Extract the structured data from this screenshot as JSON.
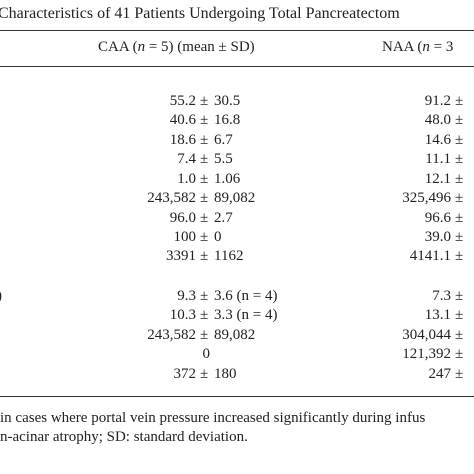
{
  "title": "Characteristics of 41 Patients Undergoing Total Pancreatectom",
  "header": {
    "caa": [
      "CAA (",
      "n",
      " = 5) (mean ± SD)"
    ],
    "naa": [
      "NAA (",
      "n",
      " = 3"
    ]
  },
  "row_label_fragment": ")",
  "table": {
    "rows": [
      [
        [
          "55.2",
          "±",
          "30.5"
        ],
        [
          "91.2",
          "±",
          ""
        ]
      ],
      [
        [
          "40.6",
          "±",
          "16.8"
        ],
        [
          "48.0",
          "±",
          ""
        ]
      ],
      [
        [
          "18.6",
          "±",
          "6.7"
        ],
        [
          "14.6",
          "±",
          ""
        ]
      ],
      [
        [
          "7.4",
          "±",
          "5.5"
        ],
        [
          "11.1",
          "±",
          ""
        ]
      ],
      [
        [
          "1.0",
          "±",
          "1.06"
        ],
        [
          "12.1",
          "±",
          ""
        ]
      ],
      [
        [
          "243,582",
          "±",
          "89,082"
        ],
        [
          "325,496",
          "±",
          ""
        ]
      ],
      [
        [
          "96.0",
          "±",
          "2.7"
        ],
        [
          "96.6",
          "±",
          ""
        ]
      ],
      [
        [
          "100",
          "±",
          "0"
        ],
        [
          "39.0",
          "±",
          ""
        ]
      ],
      [
        [
          "3391",
          "±",
          "1162"
        ],
        [
          "4141.1",
          "±",
          ""
        ]
      ],
      [
        [
          "9.3",
          "±",
          "3.6 (n = 4)"
        ],
        [
          "7.3",
          "±",
          ""
        ]
      ],
      [
        [
          "10.3",
          "±",
          "3.3 (n = 4)"
        ],
        [
          "13.1",
          "±",
          ""
        ]
      ],
      [
        [
          "243,582",
          "±",
          "89,082"
        ],
        [
          "304,044",
          "±",
          ""
        ]
      ],
      [
        [
          "0",
          "",
          ""
        ],
        [
          "121,392",
          "±",
          ""
        ]
      ],
      [
        [
          "372",
          "±",
          "180"
        ],
        [
          "247",
          "±",
          ""
        ]
      ]
    ]
  },
  "footnote": [
    "in cases where portal vein pressure increased significantly during infus",
    "n-acinar atrophy; SD: standard deviation."
  ]
}
